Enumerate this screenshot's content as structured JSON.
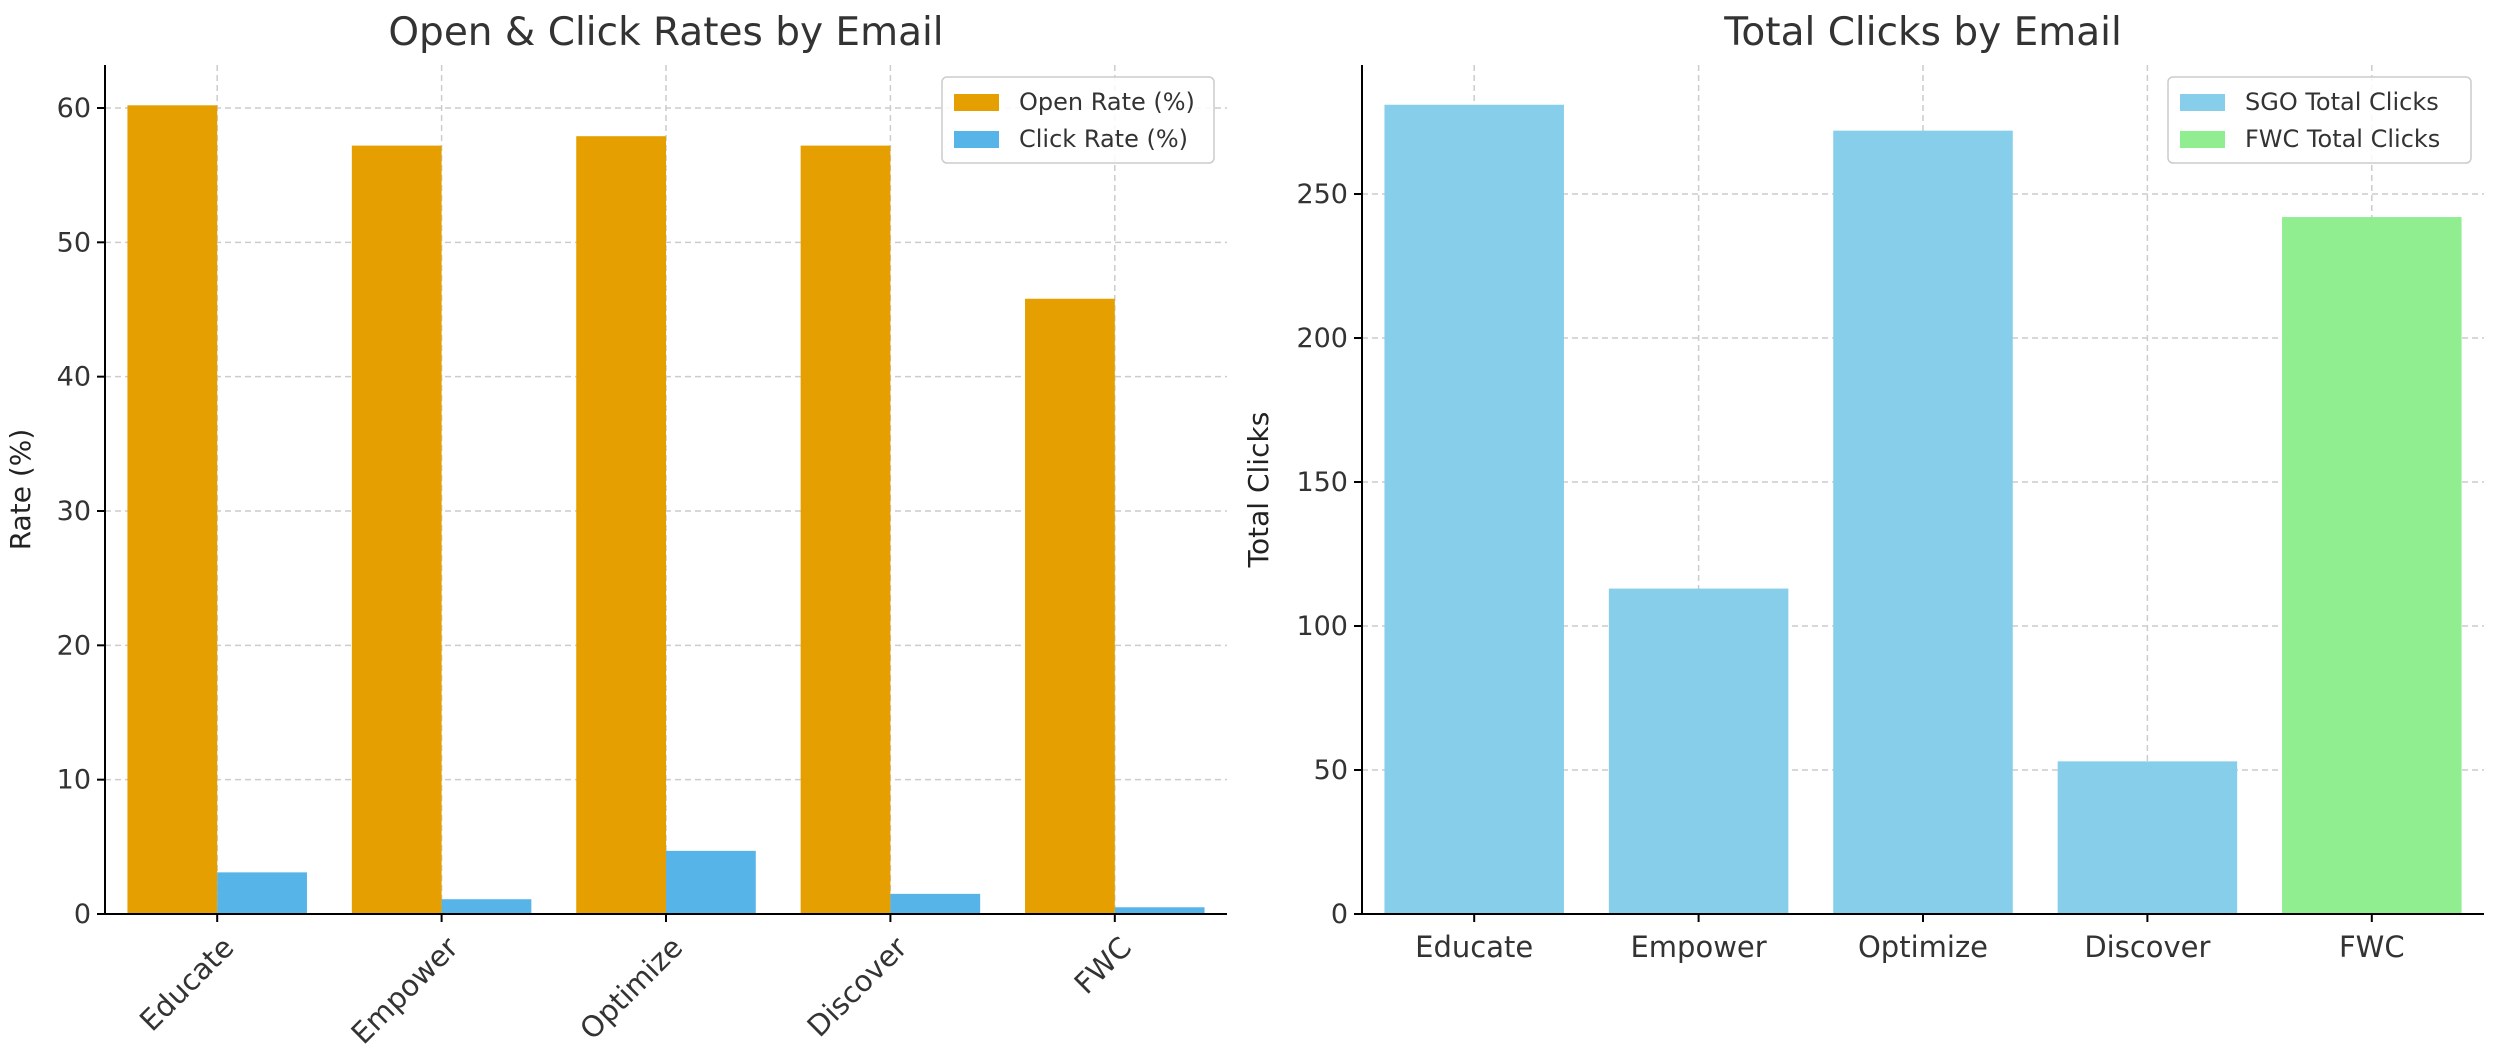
{
  "chart_data": [
    {
      "type": "bar",
      "title": "Open & Click Rates by Email",
      "xlabel": "",
      "ylabel": "Rate (%)",
      "categories": [
        "Educate",
        "Empower",
        "Optimize",
        "Discover",
        "FWC"
      ],
      "series": [
        {
          "name": "Open Rate (%)",
          "color": "#E69F00",
          "values": [
            60.2,
            57.2,
            57.9,
            57.2,
            45.8
          ]
        },
        {
          "name": "Click Rate (%)",
          "color": "#56B4E9",
          "values": [
            3.1,
            1.1,
            4.7,
            1.5,
            0.5
          ]
        }
      ],
      "ylim": [
        0,
        63.2
      ],
      "yticks": [
        0,
        10,
        20,
        30,
        40,
        50,
        60
      ],
      "grid": true,
      "legend": "top-right",
      "xtick_rotation": 45
    },
    {
      "type": "bar",
      "title": "Total Clicks by Email",
      "xlabel": "",
      "ylabel": "Total Clicks",
      "categories": [
        "Educate",
        "Empower",
        "Optimize",
        "Discover",
        "FWC"
      ],
      "values": [
        281,
        113,
        272,
        53,
        242
      ],
      "bar_colors": [
        "#87CEEB",
        "#87CEEB",
        "#87CEEB",
        "#87CEEB",
        "#90EE90"
      ],
      "legend_entries": [
        {
          "name": "SGO Total Clicks",
          "color": "#87CEEB"
        },
        {
          "name": "FWC Total Clicks",
          "color": "#90EE90"
        }
      ],
      "ylim": [
        0,
        294.8
      ],
      "yticks": [
        0,
        50,
        100,
        150,
        200,
        250
      ],
      "grid": true,
      "legend": "top-right",
      "xtick_rotation": 0
    }
  ]
}
